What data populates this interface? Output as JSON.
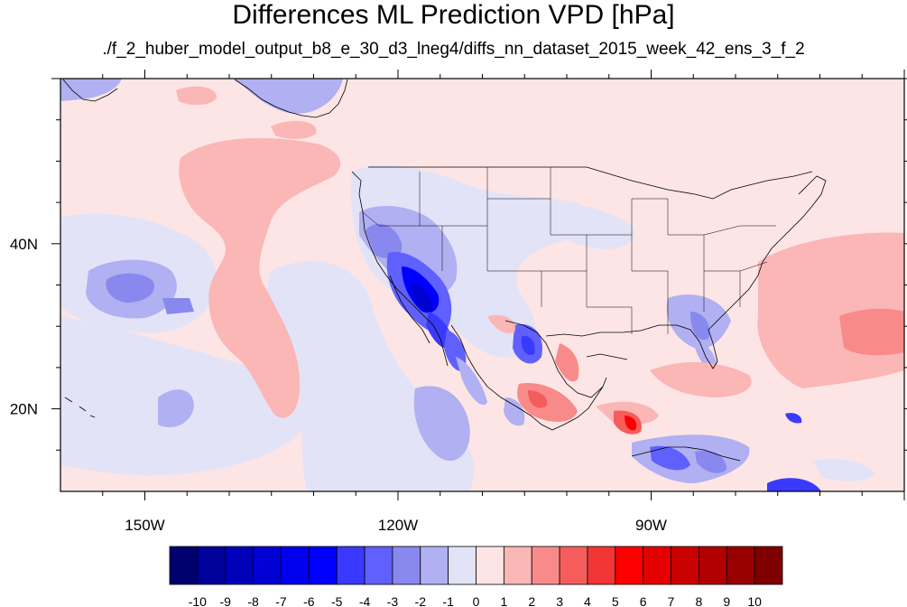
{
  "title": "Differences ML Prediction VPD [hPa]",
  "subtitle": "./f_2_huber_model_output_b8_e_30_d3_lneg4/diffs_nn_dataset_2015_week_42_ens_3_f_2",
  "map": {
    "lon_range": [
      -160,
      -60
    ],
    "lat_range": [
      10,
      60
    ],
    "x_ticks": [
      {
        "lon": -150,
        "label": "150W"
      },
      {
        "lon": -120,
        "label": "120W"
      },
      {
        "lon": -90,
        "label": "90W"
      }
    ],
    "y_ticks": [
      {
        "lat": 40,
        "label": "40N"
      },
      {
        "lat": 20,
        "label": "20N"
      }
    ],
    "background_color": "#fde5e5"
  },
  "colorbar": {
    "labels": [
      "-10",
      "-9",
      "-8",
      "-7",
      "-6",
      "-5",
      "-4",
      "-3",
      "-2",
      "-1",
      "0",
      "1",
      "2",
      "3",
      "4",
      "5",
      "6",
      "7",
      "8",
      "9",
      "10"
    ],
    "colors": [
      "#00006e",
      "#00009a",
      "#0000b9",
      "#0000d2",
      "#0000ec",
      "#0000ff",
      "#3a3aff",
      "#6060ff",
      "#8888ee",
      "#b0b0f2",
      "#e3e3f8",
      "#fde5e5",
      "#fbb6b6",
      "#f98a8a",
      "#f55d5d",
      "#f23535",
      "#ff0000",
      "#e20000",
      "#c90000",
      "#b00000",
      "#980000",
      "#7e0000"
    ]
  }
}
